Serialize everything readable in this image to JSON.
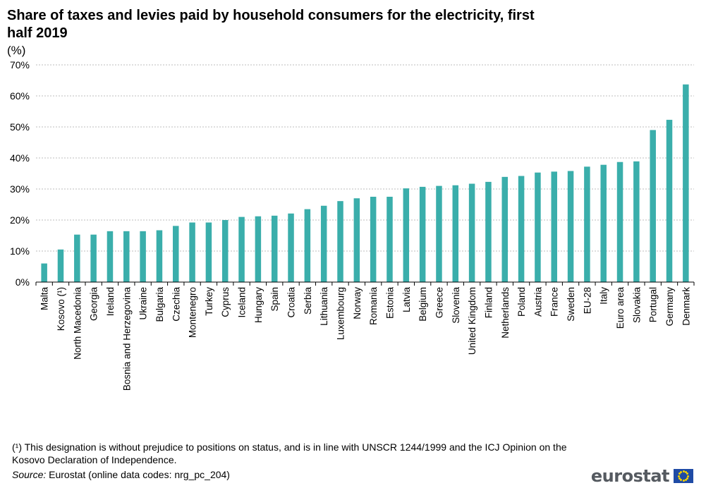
{
  "title": "Share of taxes and levies paid by household consumers for the electricity, first half 2019",
  "unit_label": "(%)",
  "footnote": "(¹) This designation is without  prejudice to positions on status, and is in line with UNSCR 1244/1999 and the ICJ Opinion on the Kosovo Declaration of Independence.",
  "source": {
    "label": "Source:",
    "text": "Eurostat (online data codes: nrg_pc_204)"
  },
  "logo": {
    "text": "eurostat",
    "flag_icon": "eu-flag-icon"
  },
  "colors": {
    "bar": "#3aaeab",
    "grid": "#a6a6a6",
    "axis": "#000000"
  },
  "chart_data": {
    "type": "bar",
    "categories": [
      "Malta",
      "Kosovo (¹)",
      "North Macedonia",
      "Georgia",
      "Ireland",
      "Bosnia and Herzegovina",
      "Ukraine",
      "Bulgaria",
      "Czechia",
      "Montenegro",
      "Turkey",
      "Cyprus",
      "Iceland",
      "Hungary",
      "Spain",
      "Croatia",
      "Serbia",
      "Lithuania",
      "Luxembourg",
      "Norway",
      "Romania",
      "Estonia",
      "Latvia",
      "Belgium",
      "Greece",
      "Slovenia",
      "United Kingdom",
      "Finland",
      "Netherlands",
      "Poland",
      "Austria",
      "France",
      "Sweden",
      "EU-28",
      "Italy",
      "Euro area",
      "Slovakia",
      "Portugal",
      "Germany",
      "Denmark"
    ],
    "values": [
      6.0,
      10.5,
      15.3,
      15.3,
      16.4,
      16.4,
      16.4,
      16.7,
      18.1,
      19.2,
      19.2,
      20.0,
      21.0,
      21.2,
      21.4,
      22.1,
      23.5,
      24.6,
      26.1,
      27.0,
      27.5,
      27.5,
      30.2,
      30.7,
      31.0,
      31.2,
      31.7,
      32.3,
      33.9,
      34.2,
      35.3,
      35.6,
      35.8,
      37.2,
      37.8,
      38.7,
      38.9,
      49.0,
      52.3,
      63.7
    ],
    "yticks": [
      "0%",
      "10%",
      "20%",
      "30%",
      "40%",
      "50%",
      "60%",
      "70%"
    ],
    "ylim": [
      0,
      70
    ],
    "grid": true
  }
}
